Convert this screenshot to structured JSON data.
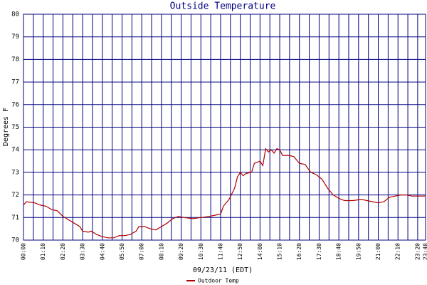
{
  "chart_data": {
    "type": "line",
    "title": "Outside Temperature",
    "xlabel": "09/23/11 (EDT)",
    "ylabel": "Degrees F",
    "x": [
      "00:00",
      "00:10",
      "00:40",
      "01:00",
      "01:20",
      "01:40",
      "02:00",
      "02:20",
      "02:40",
      "03:00",
      "03:20",
      "03:30",
      "03:50",
      "04:00",
      "04:20",
      "04:40",
      "05:00",
      "05:20",
      "05:40",
      "06:00",
      "06:20",
      "06:40",
      "06:50",
      "07:10",
      "07:30",
      "07:50",
      "08:10",
      "08:30",
      "08:50",
      "09:10",
      "09:30",
      "10:00",
      "10:30",
      "11:00",
      "11:20",
      "11:40",
      "11:50",
      "12:10",
      "12:30",
      "12:40",
      "12:50",
      "13:00",
      "13:10",
      "13:30",
      "13:40",
      "14:00",
      "14:10",
      "14:20",
      "14:30",
      "14:40",
      "14:50",
      "15:00",
      "15:10",
      "15:20",
      "15:40",
      "16:00",
      "16:20",
      "16:40",
      "17:00",
      "17:20",
      "17:40",
      "18:00",
      "18:20",
      "18:40",
      "19:00",
      "19:30",
      "20:00",
      "20:20",
      "20:40",
      "21:00",
      "21:20",
      "21:40",
      "22:00",
      "22:20",
      "22:40",
      "23:00",
      "23:20",
      "23:48"
    ],
    "series": [
      {
        "name": "Outdoor Temp",
        "color": "#b00000",
        "values": [
          71.55,
          71.7,
          71.65,
          71.55,
          71.5,
          71.35,
          71.3,
          71.05,
          70.9,
          70.75,
          70.6,
          70.4,
          70.35,
          70.4,
          70.25,
          70.15,
          70.1,
          70.1,
          70.2,
          70.2,
          70.25,
          70.4,
          70.6,
          70.6,
          70.5,
          70.45,
          70.6,
          70.75,
          70.95,
          71.05,
          71.0,
          70.95,
          71.0,
          71.05,
          71.1,
          71.15,
          71.5,
          71.8,
          72.3,
          72.8,
          73.0,
          72.85,
          72.95,
          73.0,
          73.4,
          73.5,
          73.3,
          74.05,
          73.9,
          74.0,
          73.85,
          74.05,
          74.0,
          73.75,
          73.75,
          73.7,
          73.4,
          73.35,
          73.0,
          72.9,
          72.7,
          72.3,
          72.0,
          71.85,
          71.75,
          71.75,
          71.8,
          71.75,
          71.7,
          71.65,
          71.7,
          71.9,
          71.95,
          72.0,
          72.0,
          71.95,
          71.95,
          71.95
        ]
      }
    ],
    "xlim": [
      "00:00",
      "23:48"
    ],
    "xticks": [
      "00:00",
      "01:10",
      "02:20",
      "03:30",
      "04:40",
      "05:50",
      "07:00",
      "08:10",
      "09:20",
      "10:30",
      "11:40",
      "12:50",
      "14:00",
      "15:10",
      "16:20",
      "17:30",
      "18:40",
      "19:50",
      "21:00",
      "22:10",
      "23:20",
      "23:48"
    ],
    "ylim": [
      70,
      80
    ],
    "yticks": [
      70,
      71,
      72,
      73,
      74,
      75,
      76,
      77,
      78,
      79,
      80
    ],
    "grid": true
  }
}
